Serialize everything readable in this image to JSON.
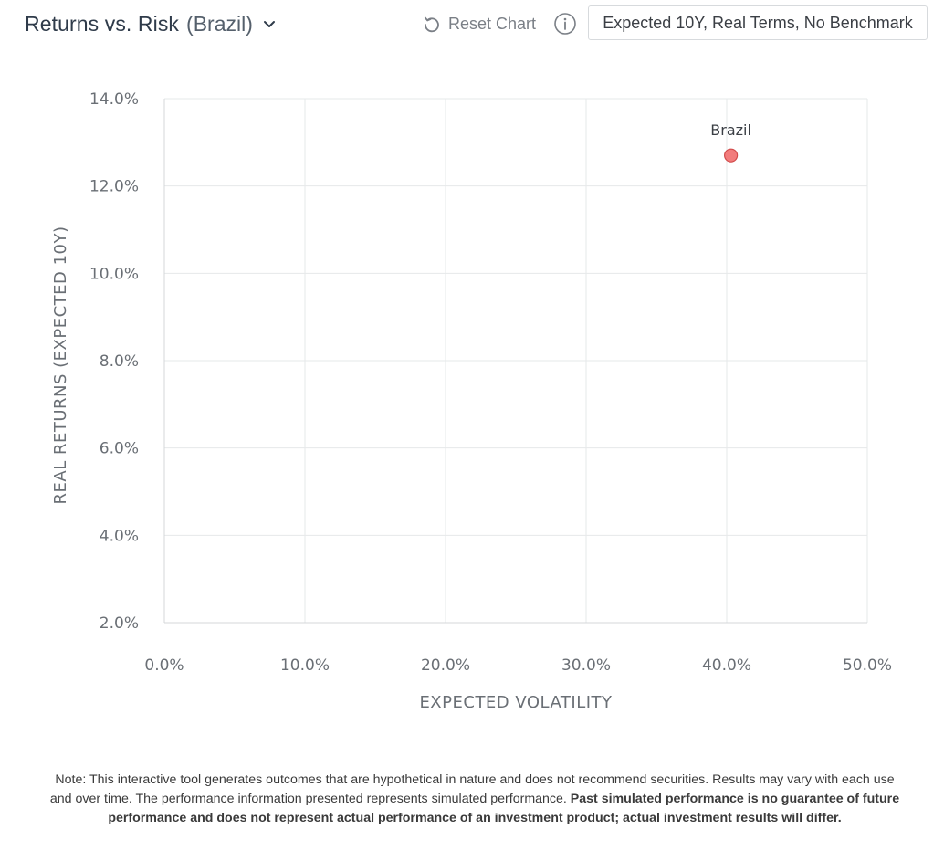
{
  "header": {
    "title": "Returns vs. Risk",
    "subtitle": "(Brazil)",
    "reset_label": "Reset Chart",
    "scenario_label": "Expected 10Y, Real Terms, No Benchmark"
  },
  "icons": {
    "title_dropdown": "chevron-down-icon",
    "reset": "reset-icon",
    "info": "info-icon"
  },
  "chart_data": {
    "type": "scatter",
    "xlabel": "EXPECTED VOLATILITY",
    "ylabel": "REAL RETURNS (EXPECTED 10Y)",
    "xlim": [
      0,
      50
    ],
    "ylim": [
      2,
      14
    ],
    "x_ticks": [
      0,
      10,
      20,
      30,
      40,
      50
    ],
    "y_ticks": [
      2,
      4,
      6,
      8,
      10,
      12,
      14
    ],
    "x_tick_labels": [
      "0.0%",
      "10.0%",
      "20.0%",
      "30.0%",
      "40.0%",
      "50.0%"
    ],
    "y_tick_labels": [
      "2.0%",
      "4.0%",
      "6.0%",
      "8.0%",
      "10.0%",
      "12.0%",
      "14.0%"
    ],
    "grid": true,
    "points": [
      {
        "label": "Brazil",
        "x": 40.3,
        "y": 12.7,
        "color": "#f27c7c",
        "stroke": "#d14a4a"
      }
    ]
  },
  "note": {
    "normal": "Note: This interactive tool generates outcomes that are hypothetical in nature and does not recommend securities. Results may vary with each use and over time. The performance information presented represents simulated performance.",
    "bold": "Past simulated performance is no guarantee of future performance and does not represent actual performance of an investment product; actual investment results will differ."
  }
}
